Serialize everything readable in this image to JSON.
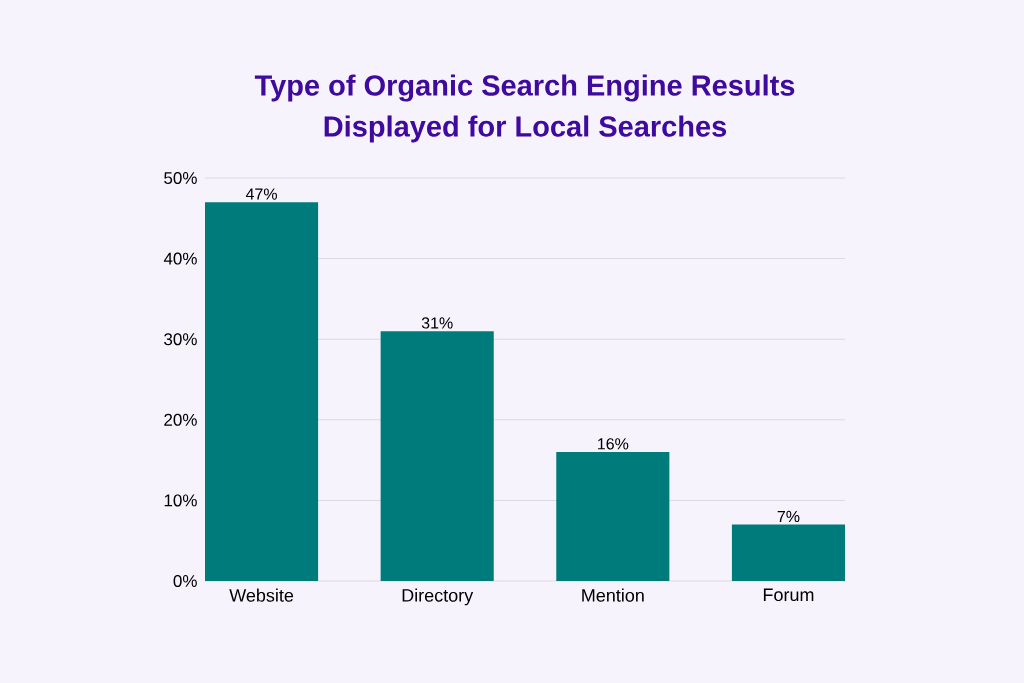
{
  "chart_data": {
    "type": "bar",
    "title": "Type of Organic Search Engine Results Displayed for Local Searches",
    "categories": [
      "Website",
      "Directory",
      "Mention",
      "Forum"
    ],
    "values": [
      47,
      31,
      16,
      7
    ],
    "color": "#007b7b",
    "value_labels": [
      "47%",
      "31%",
      "16%",
      "7%"
    ],
    "ylim": [
      0,
      50
    ],
    "yticks": [
      {
        "value": 0,
        "label": "0%"
      },
      {
        "value": 10,
        "label": "10%"
      },
      {
        "value": 20,
        "label": "20%"
      },
      {
        "value": 30,
        "label": "30%"
      },
      {
        "value": 40,
        "label": "40%"
      },
      {
        "value": 50,
        "label": "50%"
      }
    ],
    "grid": "y"
  }
}
